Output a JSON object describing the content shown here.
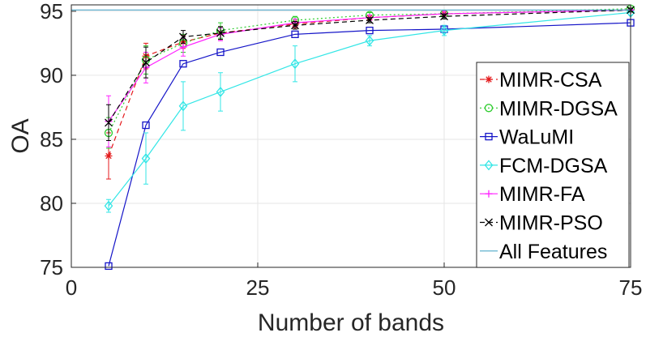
{
  "chart_data": {
    "type": "line",
    "title": "",
    "xlabel": "Number of bands",
    "ylabel": "OA",
    "xlim": [
      0,
      75
    ],
    "ylim": [
      75,
      95.5
    ],
    "xticks": [
      0,
      25,
      50,
      75
    ],
    "yticks": [
      75,
      80,
      85,
      90,
      95
    ],
    "grid": true,
    "legend_position": "bottom-right",
    "x": [
      5,
      10,
      15,
      20,
      30,
      40,
      50,
      75
    ],
    "series": [
      {
        "name": "MIMR-CSA",
        "color": "#e41a1c",
        "line_style": "dash",
        "marker": "asterisk",
        "values": [
          83.7,
          91.5,
          92.6,
          93.3,
          94.0,
          94.5,
          94.8,
          95.1
        ],
        "error": [
          1.8,
          1.0,
          0.5,
          0.5,
          0.3,
          0.2,
          0.2,
          0.1
        ]
      },
      {
        "name": "MIMR-DGSA",
        "color": "#2ecc2e",
        "line_style": "dot",
        "marker": "circle",
        "values": [
          85.5,
          91.2,
          92.5,
          93.5,
          94.3,
          94.7,
          94.8,
          95.2
        ],
        "error": [
          1.2,
          1.1,
          0.7,
          0.6,
          0.3,
          0.2,
          0.2,
          0.1
        ]
      },
      {
        "name": "WaLuMI",
        "color": "#1515c8",
        "line_style": "solid",
        "marker": "square",
        "values": [
          75.1,
          86.1,
          90.9,
          91.8,
          93.2,
          93.5,
          93.6,
          94.1
        ],
        "error": [
          0,
          0,
          0,
          0,
          0,
          0,
          0,
          0
        ]
      },
      {
        "name": "FCM-DGSA",
        "color": "#33e6e6",
        "line_style": "solid",
        "marker": "diamond",
        "values": [
          79.8,
          83.5,
          87.6,
          88.7,
          90.9,
          92.7,
          93.5,
          94.9
        ],
        "error": [
          0.5,
          2.0,
          1.9,
          1.5,
          1.4,
          0.4,
          0.4,
          0.2
        ]
      },
      {
        "name": "MIMR-FA",
        "color": "#ff22ff",
        "line_style": "solid",
        "marker": "plus",
        "values": [
          86.4,
          90.6,
          92.2,
          93.2,
          94.1,
          94.5,
          94.8,
          95.1
        ],
        "error": [
          2.0,
          1.2,
          0.7,
          0.5,
          0.3,
          0.2,
          0.2,
          0.1
        ]
      },
      {
        "name": "MIMR-PSO",
        "color": "#000000",
        "line_style": "dash",
        "marker": "x",
        "values": [
          86.3,
          91.0,
          93.0,
          93.3,
          93.9,
          94.3,
          94.6,
          95.1
        ],
        "error": [
          1.4,
          1.2,
          0.5,
          0.5,
          0.3,
          0.2,
          0.2,
          0.1
        ]
      },
      {
        "name": "All Features",
        "color": "#4fa8c9",
        "line_style": "solid",
        "marker": "none",
        "constant": 95.1
      }
    ]
  }
}
